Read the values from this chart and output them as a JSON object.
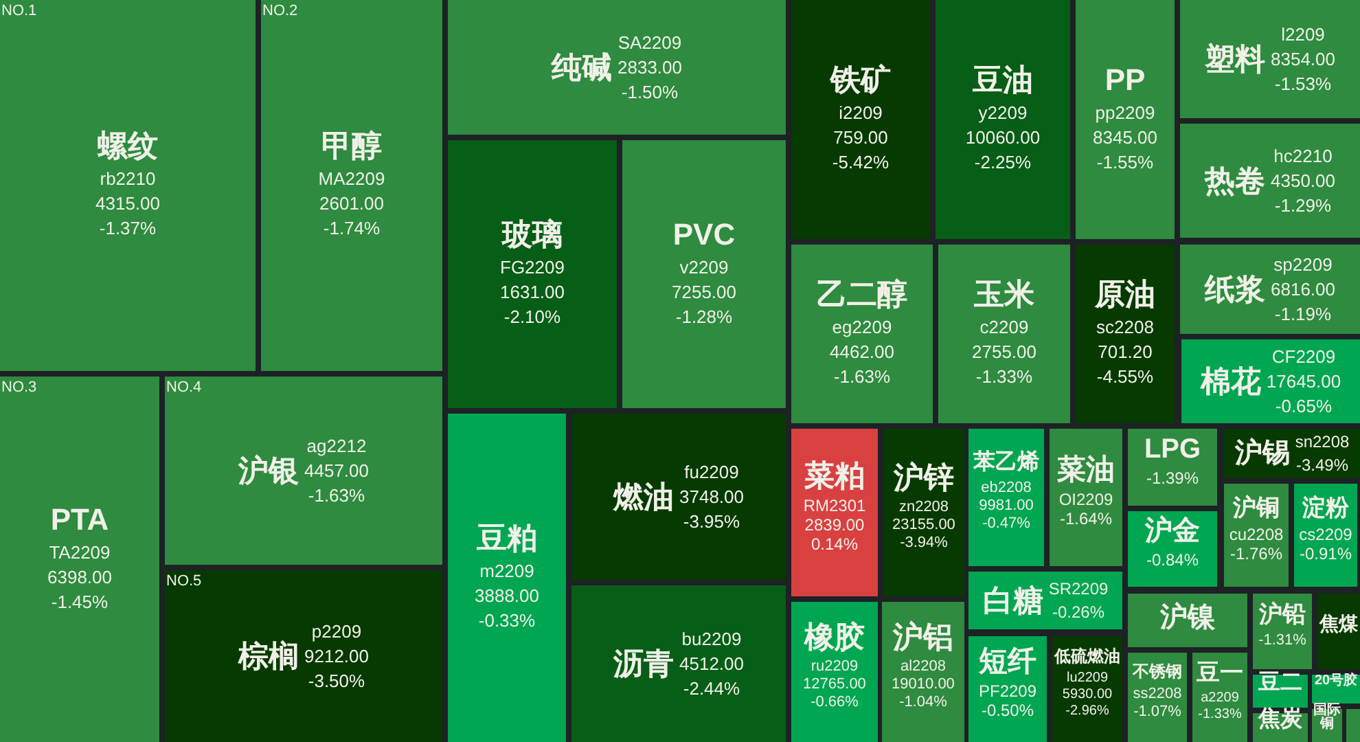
{
  "chart_data": {
    "type": "other",
    "categories": [
      "螺纹",
      "甲醇",
      "纯碱",
      "玻璃",
      "PVC",
      "PTA",
      "沪银",
      "棕榈",
      "豆粕",
      "燃油",
      "沥青",
      "铁矿",
      "豆油",
      "PP",
      "塑料",
      "热卷",
      "乙二醇",
      "玉米",
      "原油",
      "纸浆",
      "棉花",
      "菜粕",
      "沪锌",
      "橡胶",
      "沪铝",
      "苯乙烯",
      "菜油",
      "LPG",
      "沪锡",
      "沪铜",
      "淀粉",
      "沪金",
      "白糖",
      "短纤",
      "低硫燃油",
      "沪镍",
      "不锈钢",
      "豆一",
      "沪铅",
      "焦煤",
      "豆二",
      "焦炭",
      "20号胶",
      "国际铜",
      null
    ],
    "series": [
      {
        "colors": [
          "#2e8b3f",
          "#2e8b3f",
          "#2e8b3f",
          "#075e16",
          "#2e8b3f",
          "#2e8b3f",
          "#2e8b3f",
          "#073a00",
          "#00a651",
          "#073a00",
          "#075e16",
          "#073a00",
          "#075e16",
          "#2e8b3f",
          "#2e8b3f",
          "#2e8b3f",
          "#2e8b3f",
          "#2e8b3f",
          "#073a00",
          "#2e8b3f",
          "#00a651",
          "#d94040",
          "#073a00",
          "#00a651",
          "#2e8b3f",
          "#00a651",
          "#2e8b3f",
          "#2e8b3f",
          "#073a00",
          "#2e8b3f",
          "#00a651",
          "#00a651",
          "#00a651",
          "#00a651",
          "#073a00",
          "#2e8b3f",
          "#2e8b3f",
          "#2e8b3f",
          "#2e8b3f",
          "#073a00",
          "#00a651",
          "#2e8b3f",
          "#00a651",
          "#2e8b3f",
          "#2e8b3f"
        ],
        "values": [
          4315,
          2601,
          2833,
          1631,
          7255,
          6398,
          4457,
          9212,
          3888,
          3748,
          4512,
          759,
          10060,
          8345,
          8354,
          4350,
          4462,
          2755,
          701.2,
          6816,
          17645,
          2839,
          23155,
          12765,
          19010,
          9981,
          null,
          null,
          null,
          null,
          null,
          null,
          null,
          null,
          5930,
          null,
          null,
          null,
          null,
          null,
          null,
          null,
          null,
          null,
          null
        ],
        "value_labels": [
          "4315.00",
          "2601.00",
          "2833.00",
          "1631.00",
          "7255.00",
          "6398.00",
          "4457.00",
          "9212.00",
          "3888.00",
          "3748.00",
          "4512.00",
          "759.00",
          "10060.00",
          "8345.00",
          "8354.00",
          "4350.00",
          "4462.00",
          "2755.00",
          "701.20",
          "6816.00",
          "17645.00",
          "2839.00",
          "23155.00",
          "12765.00",
          "19010.00",
          "9981.00",
          null,
          null,
          null,
          null,
          null,
          null,
          null,
          null,
          "5930.00",
          null,
          null,
          null,
          null,
          null,
          null,
          null,
          null,
          null,
          null
        ]
      },
      {
        "colors": [
          "#2e8b3f",
          "#2e8b3f",
          "#2e8b3f",
          "#075e16",
          "#2e8b3f",
          "#2e8b3f",
          "#2e8b3f",
          "#073a00",
          "#00a651",
          "#073a00",
          "#075e16",
          "#073a00",
          "#075e16",
          "#2e8b3f",
          "#2e8b3f",
          "#2e8b3f",
          "#2e8b3f",
          "#2e8b3f",
          "#073a00",
          "#2e8b3f",
          "#00a651",
          "#d94040",
          "#073a00",
          "#00a651",
          "#2e8b3f",
          "#00a651",
          "#2e8b3f",
          "#2e8b3f",
          "#073a00",
          "#2e8b3f",
          "#00a651",
          "#00a651",
          "#00a651",
          "#00a651",
          "#073a00",
          "#2e8b3f",
          "#2e8b3f",
          "#2e8b3f",
          "#2e8b3f",
          "#073a00",
          "#00a651",
          "#2e8b3f",
          "#00a651",
          "#2e8b3f",
          "#2e8b3f"
        ],
        "values": [
          -1.37,
          -1.74,
          -1.5,
          -2.1,
          -1.28,
          -1.45,
          -1.63,
          -3.5,
          -0.33,
          -3.95,
          -2.44,
          -5.42,
          -2.25,
          -1.55,
          -1.53,
          -1.29,
          -1.63,
          -1.33,
          -4.55,
          -1.19,
          -0.65,
          0.14,
          -3.94,
          -0.66,
          -1.04,
          -0.47,
          -1.64,
          -1.39,
          -3.49,
          -1.76,
          -0.91,
          -0.84,
          -0.26,
          -0.5,
          -2.96,
          null,
          -1.07,
          -1.33,
          -1.31,
          null,
          null,
          null,
          null,
          null,
          null
        ],
        "value_labels": [
          "-1.37%",
          "-1.74%",
          "-1.50%",
          "-2.10%",
          "-1.28%",
          "-1.45%",
          "-1.63%",
          "-3.50%",
          "-0.33%",
          "-3.95%",
          "-2.44%",
          "-5.42%",
          "-2.25%",
          "-1.55%",
          "-1.53%",
          "-1.29%",
          "-1.63%",
          "-1.33%",
          "-4.55%",
          "-1.19%",
          "-0.65%",
          "0.14%",
          "-3.94%",
          "-0.66%",
          "-1.04%",
          "-0.47%",
          "-1.64%",
          "-1.39%",
          "-3.49%",
          "-1.76%",
          "-0.91%",
          "-0.84%",
          "-0.26%",
          "-0.50%",
          "-2.96%",
          null,
          "-1.07%",
          "-1.33%",
          "-1.31%",
          null,
          null,
          null,
          null,
          null,
          null
        ]
      }
    ],
    "annotations": [
      {
        "text": "rb2210",
        "x": "螺纹"
      },
      {
        "text": "MA2209",
        "x": "甲醇"
      },
      {
        "text": "SA2209",
        "x": "纯碱"
      },
      {
        "text": "FG2209",
        "x": "玻璃"
      },
      {
        "text": "v2209",
        "x": "PVC"
      },
      {
        "text": "TA2209",
        "x": "PTA"
      },
      {
        "text": "ag2212",
        "x": "沪银"
      },
      {
        "text": "p2209",
        "x": "棕榈"
      },
      {
        "text": "m2209",
        "x": "豆粕"
      },
      {
        "text": "fu2209",
        "x": "燃油"
      },
      {
        "text": "bu2209",
        "x": "沥青"
      },
      {
        "text": "i2209",
        "x": "铁矿"
      },
      {
        "text": "y2209",
        "x": "豆油"
      },
      {
        "text": "pp2209",
        "x": "PP"
      },
      {
        "text": "l2209",
        "x": "塑料"
      },
      {
        "text": "hc2210",
        "x": "热卷"
      },
      {
        "text": "eg2209",
        "x": "乙二醇"
      },
      {
        "text": "c2209",
        "x": "玉米"
      },
      {
        "text": "sc2208",
        "x": "原油"
      },
      {
        "text": "sp2209",
        "x": "纸浆"
      },
      {
        "text": "CF2209",
        "x": "棉花"
      },
      {
        "text": "RM2301",
        "x": "菜粕"
      },
      {
        "text": "zn2208",
        "x": "沪锌"
      },
      {
        "text": "ru2209",
        "x": "橡胶"
      },
      {
        "text": "al2208",
        "x": "沪铝"
      },
      {
        "text": "eb2208",
        "x": "苯乙烯"
      },
      {
        "text": "OI2209",
        "x": "菜油"
      },
      {
        "text": "sn2208",
        "x": "沪锡"
      },
      {
        "text": "cu2208",
        "x": "沪铜"
      },
      {
        "text": "cs2209",
        "x": "淀粉"
      },
      {
        "text": "SR2209",
        "x": "白糖"
      },
      {
        "text": "PF2209",
        "x": "短纤"
      },
      {
        "text": "lu2209",
        "x": "低硫燃油"
      },
      {
        "text": "ss2208",
        "x": "不锈钢"
      },
      {
        "text": "a2209",
        "x": "豆一"
      },
      {
        "text": "NO.1",
        "x": "螺纹"
      },
      {
        "text": "NO.2",
        "x": "甲醇"
      },
      {
        "text": "NO.3",
        "x": "PTA"
      },
      {
        "text": "NO.4",
        "x": "沪银"
      },
      {
        "text": "NO.5",
        "x": "棕榈"
      }
    ]
  }
}
